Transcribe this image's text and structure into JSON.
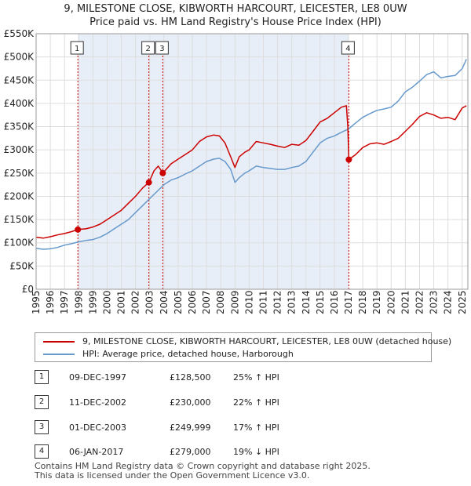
{
  "title": {
    "line1": "9, MILESTONE CLOSE, KIBWORTH HARCOURT, LEICESTER, LE8 0UW",
    "line2": "Price paid vs. HM Land Registry's House Price Index (HPI)"
  },
  "colors": {
    "property": "#cc0000",
    "hpi": "#6699cc",
    "shade": "#e8eef8",
    "marker_line": "#cc0000",
    "grid": "#dddddd"
  },
  "legend": {
    "property_label": "9, MILESTONE CLOSE, KIBWORTH HARCOURT, LEICESTER, LE8 0UW (detached house)",
    "hpi_label": "HPI: Average price, detached house, Harborough"
  },
  "transactions": [
    {
      "id": "1",
      "date": "09-DEC-1997",
      "price": "£128,500",
      "hpi": "25% ↑ HPI"
    },
    {
      "id": "2",
      "date": "11-DEC-2002",
      "price": "£230,000",
      "hpi": "22% ↑ HPI"
    },
    {
      "id": "3",
      "date": "01-DEC-2003",
      "price": "£249,999",
      "hpi": "17% ↑ HPI"
    },
    {
      "id": "4",
      "date": "06-JAN-2017",
      "price": "£279,000",
      "hpi": "19% ↓ HPI"
    }
  ],
  "footer": {
    "line1": "Contains HM Land Registry data © Crown copyright and database right 2025.",
    "line2": "This data is licensed under the Open Government Licence v3.0."
  },
  "chart_data": {
    "type": "line",
    "title": "9, MILESTONE CLOSE, KIBWORTH HARCOURT, LEICESTER, LE8 0UW — Price paid vs. HM Land Registry's House Price Index (HPI)",
    "xlabel": "",
    "ylabel": "",
    "xlim": [
      1995,
      2025.4
    ],
    "ylim": [
      0,
      550000
    ],
    "yticks": [
      0,
      50000,
      100000,
      150000,
      200000,
      250000,
      300000,
      350000,
      400000,
      450000,
      500000,
      550000
    ],
    "ytick_labels": [
      "£0",
      "£50K",
      "£100K",
      "£150K",
      "£200K",
      "£250K",
      "£300K",
      "£350K",
      "£400K",
      "£450K",
      "£500K",
      "£550K"
    ],
    "xticks": [
      1995,
      1996,
      1997,
      1998,
      1999,
      2000,
      2001,
      2002,
      2003,
      2004,
      2005,
      2006,
      2007,
      2008,
      2009,
      2010,
      2011,
      2012,
      2013,
      2014,
      2015,
      2016,
      2017,
      2018,
      2019,
      2020,
      2021,
      2022,
      2023,
      2024,
      2025
    ],
    "xtick_labels": [
      "1995",
      "1996",
      "1997",
      "1998",
      "1999",
      "2000",
      "2001",
      "2002",
      "2003",
      "2004",
      "2005",
      "2006",
      "2007",
      "2008",
      "2009",
      "2010",
      "2011",
      "2012",
      "2013",
      "2014",
      "2015",
      "2016",
      "2017",
      "2018",
      "2019",
      "2020",
      "2021",
      "2022",
      "2023",
      "2024",
      "2025"
    ],
    "grid": true,
    "shaded_range": [
      1997.94,
      2017.02
    ],
    "series": [
      {
        "name": "9, MILESTONE CLOSE, KIBWORTH HARCOURT, LEICESTER, LE8 0UW (detached house)",
        "color": "#cc0000",
        "x": [
          1995.0,
          1995.5,
          1996.0,
          1996.5,
          1997.0,
          1997.5,
          1997.94,
          1998.5,
          1999.0,
          1999.5,
          2000.0,
          2000.5,
          2001.0,
          2001.5,
          2002.0,
          2002.5,
          2002.94,
          2003.3,
          2003.6,
          2003.92,
          2004.5,
          2005.0,
          2005.5,
          2006.0,
          2006.5,
          2007.0,
          2007.5,
          2007.9,
          2008.3,
          2008.7,
          2009.0,
          2009.3,
          2009.7,
          2010.0,
          2010.5,
          2011.0,
          2011.5,
          2012.0,
          2012.5,
          2013.0,
          2013.5,
          2014.0,
          2014.5,
          2015.0,
          2015.5,
          2016.0,
          2016.5,
          2016.85,
          2016.95,
          2017.02,
          2017.5,
          2018.0,
          2018.5,
          2019.0,
          2019.5,
          2020.0,
          2020.5,
          2021.0,
          2021.5,
          2022.0,
          2022.5,
          2023.0,
          2023.5,
          2024.0,
          2024.5,
          2025.0,
          2025.3
        ],
        "values": [
          112000,
          110000,
          113000,
          117000,
          120000,
          124000,
          128500,
          130000,
          134000,
          140000,
          150000,
          160000,
          170000,
          185000,
          200000,
          218000,
          230000,
          255000,
          265000,
          249999,
          270000,
          280000,
          290000,
          300000,
          318000,
          328000,
          332000,
          330000,
          315000,
          285000,
          262000,
          285000,
          295000,
          300000,
          318000,
          315000,
          312000,
          308000,
          305000,
          312000,
          310000,
          320000,
          340000,
          360000,
          368000,
          380000,
          392000,
          395000,
          350000,
          279000,
          290000,
          305000,
          313000,
          315000,
          312000,
          318000,
          325000,
          340000,
          355000,
          372000,
          380000,
          375000,
          368000,
          370000,
          365000,
          390000,
          395000
        ]
      },
      {
        "name": "HPI: Average price, detached house, Harborough",
        "color": "#6699cc",
        "x": [
          1995.0,
          1995.5,
          1996.0,
          1996.5,
          1997.0,
          1997.5,
          1998.0,
          1998.5,
          1999.0,
          1999.5,
          2000.0,
          2000.5,
          2001.0,
          2001.5,
          2002.0,
          2002.5,
          2003.0,
          2003.5,
          2004.0,
          2004.5,
          2005.0,
          2005.5,
          2006.0,
          2006.5,
          2007.0,
          2007.5,
          2007.9,
          2008.3,
          2008.7,
          2009.0,
          2009.3,
          2009.7,
          2010.0,
          2010.5,
          2011.0,
          2011.5,
          2012.0,
          2012.5,
          2013.0,
          2013.5,
          2014.0,
          2014.5,
          2015.0,
          2015.5,
          2016.0,
          2016.5,
          2017.0,
          2017.5,
          2018.0,
          2018.5,
          2019.0,
          2019.5,
          2020.0,
          2020.5,
          2021.0,
          2021.5,
          2022.0,
          2022.5,
          2023.0,
          2023.5,
          2024.0,
          2024.5,
          2025.0,
          2025.3
        ],
        "values": [
          88000,
          86000,
          87000,
          90000,
          95000,
          98000,
          102000,
          105000,
          107000,
          112000,
          120000,
          130000,
          140000,
          150000,
          165000,
          180000,
          195000,
          210000,
          225000,
          235000,
          240000,
          248000,
          255000,
          265000,
          275000,
          280000,
          282000,
          275000,
          258000,
          230000,
          240000,
          250000,
          255000,
          265000,
          262000,
          260000,
          258000,
          258000,
          262000,
          265000,
          275000,
          295000,
          315000,
          325000,
          330000,
          338000,
          345000,
          358000,
          370000,
          378000,
          385000,
          388000,
          392000,
          405000,
          425000,
          435000,
          448000,
          462000,
          468000,
          455000,
          458000,
          460000,
          475000,
          495000
        ]
      }
    ],
    "markers": [
      {
        "label": "1",
        "x": 1997.94,
        "y": 128500
      },
      {
        "label": "2",
        "x": 2002.94,
        "y": 230000
      },
      {
        "label": "3",
        "x": 2003.92,
        "y": 249999
      },
      {
        "label": "4",
        "x": 2017.02,
        "y": 279000
      }
    ]
  }
}
